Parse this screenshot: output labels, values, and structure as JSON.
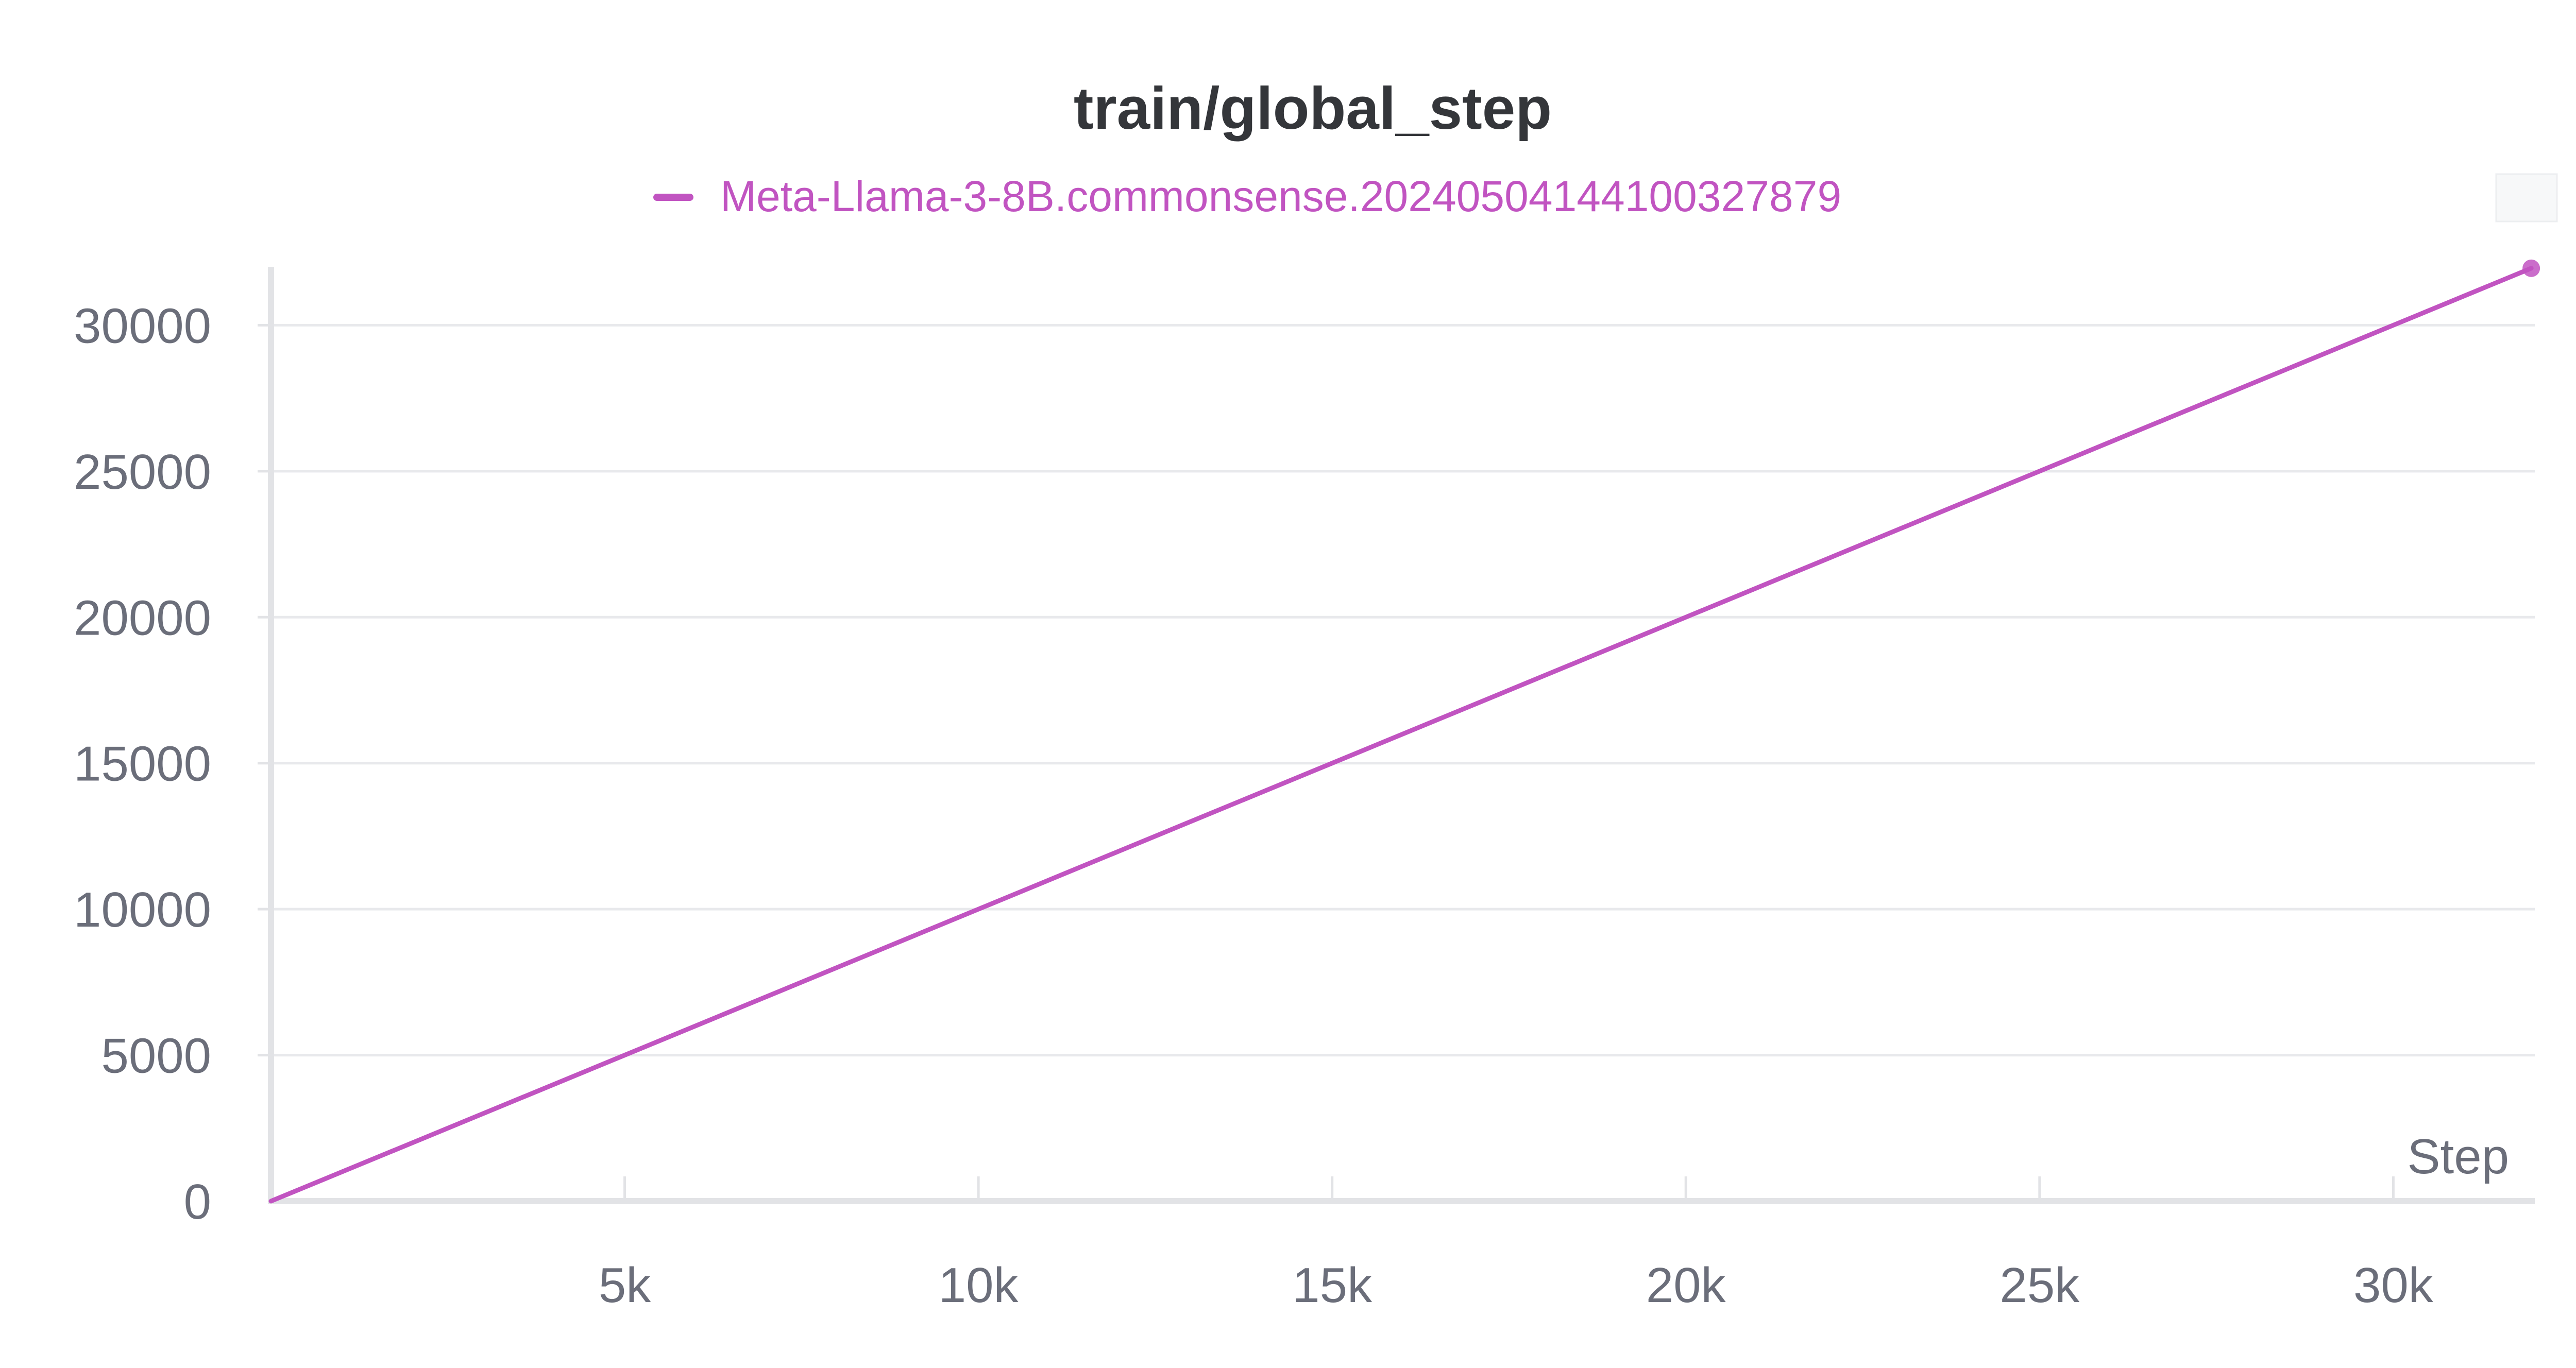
{
  "chart_data": {
    "type": "line",
    "title": "train/global_step",
    "xlabel": "Step",
    "ylabel": "",
    "xlim": [
      0,
      32000
    ],
    "ylim": [
      0,
      32000
    ],
    "x_ticks": [
      5000,
      10000,
      15000,
      20000,
      25000,
      30000
    ],
    "x_tick_labels": [
      "5k",
      "10k",
      "15k",
      "20k",
      "25k",
      "30k"
    ],
    "y_ticks": [
      0,
      5000,
      10000,
      15000,
      20000,
      25000,
      30000
    ],
    "y_tick_labels": [
      "0",
      "5000",
      "10000",
      "15000",
      "20000",
      "25000",
      "30000"
    ],
    "grid": true,
    "legend_position": "top-center",
    "series": [
      {
        "name": "Meta-Llama-3-8B.commonsense.20240504144100327879",
        "color": "#c154c1",
        "x": [
          0,
          5000,
          10000,
          15000,
          20000,
          25000,
          30000,
          31950
        ],
        "y": [
          0,
          5000,
          10000,
          15000,
          20000,
          25000,
          30000,
          31950
        ]
      }
    ]
  }
}
